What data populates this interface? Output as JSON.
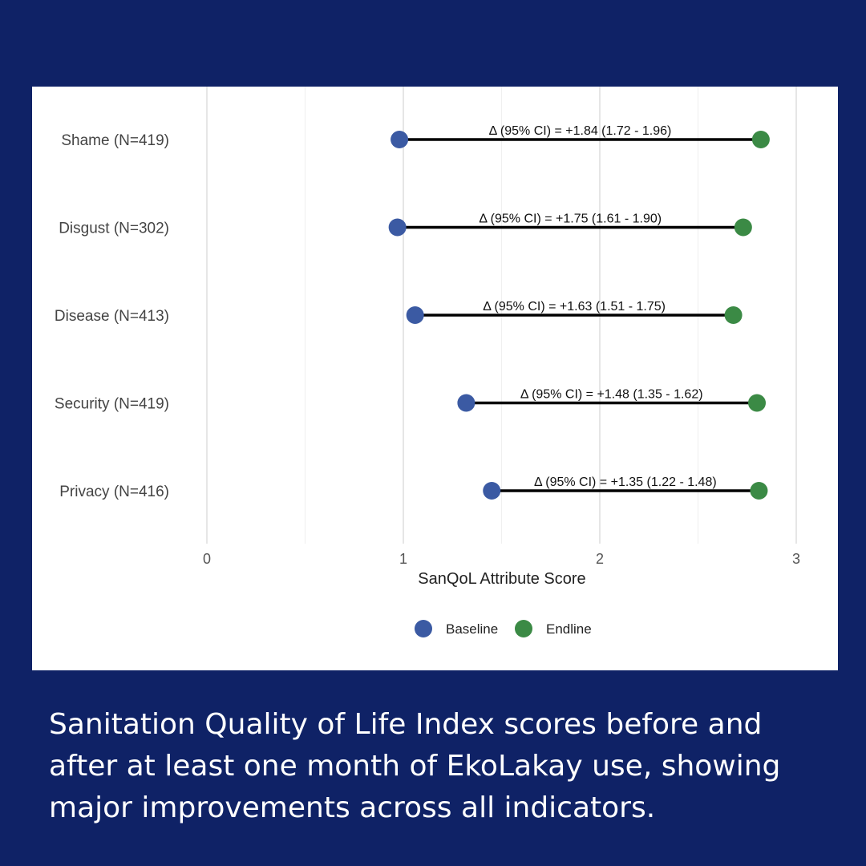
{
  "colors": {
    "background": "#0f2266",
    "panel": "#ffffff",
    "baseline": "#3b5aa3",
    "endline": "#3b8a45",
    "segment": "#000000",
    "grid": "#e6e6e6"
  },
  "caption": "Sanitation Quality of Life Index scores before and after at least one month of EkoLakay use, showing major improvements across all indicators.",
  "chart_data": {
    "type": "scatter",
    "subtype": "dumbbell",
    "title": "",
    "xlabel": "SanQoL Attribute Score",
    "ylabel": "",
    "xlim": [
      0,
      3
    ],
    "x_ticks": [
      0,
      1,
      2,
      3
    ],
    "grid": true,
    "legend_position": "bottom",
    "series": [
      {
        "name": "Baseline",
        "color": "#3b5aa3"
      },
      {
        "name": "Endline",
        "color": "#3b8a45"
      }
    ],
    "categories": [
      "Shame (N=419)",
      "Disgust (N=302)",
      "Disease (N=413)",
      "Security (N=419)",
      "Privacy (N=416)"
    ],
    "baseline": [
      0.98,
      0.97,
      1.06,
      1.32,
      1.45
    ],
    "endline": [
      2.82,
      2.73,
      2.68,
      2.8,
      2.81
    ],
    "annotations": [
      "Δ (95% CI) = +1.84 (1.72 - 1.96)",
      "Δ (95% CI) = +1.75 (1.61 - 1.90)",
      "Δ (95% CI) = +1.63 (1.51 - 1.75)",
      "Δ (95% CI) = +1.48 (1.35 - 1.62)",
      "Δ (95% CI) = +1.35 (1.22 - 1.48)"
    ]
  }
}
